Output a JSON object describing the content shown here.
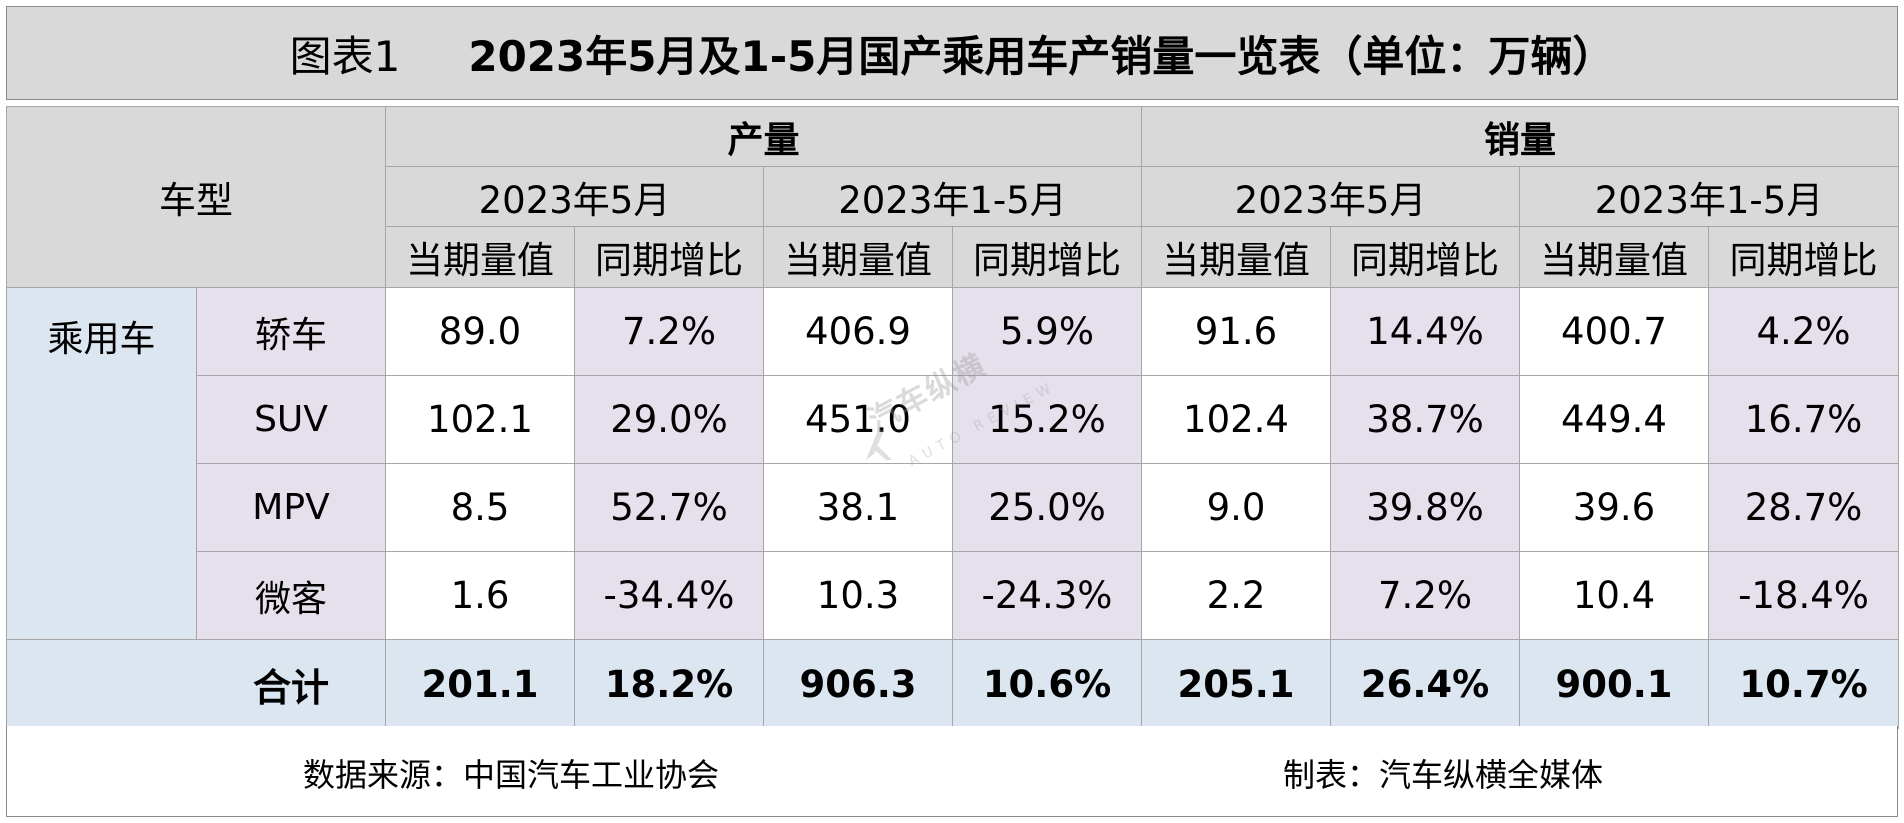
{
  "title": {
    "prefix": "图表1",
    "main": "2023年5月及1-5月国产乘用车产销量一览表（单位：万辆）"
  },
  "table": {
    "vehicle_type_header": "车型",
    "groups": [
      "产量",
      "销量"
    ],
    "periods": [
      "2023年5月",
      "2023年1-5月",
      "2023年5月",
      "2023年1-5月"
    ],
    "metrics": [
      "当期量值",
      "同期增比",
      "当期量值",
      "同期增比",
      "当期量值",
      "同期增比",
      "当期量值",
      "同期增比"
    ],
    "category_label": "乘用车",
    "rows": [
      {
        "type": "轿车",
        "values": [
          "89.0",
          "7.2%",
          "406.9",
          "5.9%",
          "91.6",
          "14.4%",
          "400.7",
          "4.2%"
        ]
      },
      {
        "type": "SUV",
        "values": [
          "102.1",
          "29.0%",
          "451.0",
          "15.2%",
          "102.4",
          "38.7%",
          "449.4",
          "16.7%"
        ]
      },
      {
        "type": "MPV",
        "values": [
          "8.5",
          "52.7%",
          "38.1",
          "25.0%",
          "9.0",
          "39.8%",
          "39.6",
          "28.7%"
        ]
      },
      {
        "type": "微客",
        "values": [
          "1.6",
          "-34.4%",
          "10.3",
          "-24.3%",
          "2.2",
          "7.2%",
          "10.4",
          "-18.4%"
        ]
      }
    ],
    "total": {
      "label": "合计",
      "values": [
        "201.1",
        "18.2%",
        "906.3",
        "10.6%",
        "205.1",
        "26.4%",
        "900.1",
        "10.7%"
      ]
    }
  },
  "footer": {
    "source": "数据来源：中国汽车工业协会",
    "maker": "制表：汽车纵横全媒体"
  },
  "watermark": {
    "text": "汽车纵横",
    "sub": "AUTO REVIEW"
  },
  "colors": {
    "header_gray": "#d9d9d9",
    "lavender": "#e6e0ec",
    "light_blue": "#dce6f1",
    "border": "#a6a6a6"
  },
  "chart_data": {
    "type": "table",
    "title": "2023年5月及1-5月国产乘用车产销量一览表（单位：万辆）",
    "columns": [
      "车型",
      "产量 2023年5月 当期量值",
      "产量 2023年5月 同期增比",
      "产量 2023年1-5月 当期量值",
      "产量 2023年1-5月 同期增比",
      "销量 2023年5月 当期量值",
      "销量 2023年5月 同期增比",
      "销量 2023年1-5月 当期量值",
      "销量 2023年1-5月 同期增比"
    ],
    "rows": [
      [
        "轿车",
        89.0,
        7.2,
        406.9,
        5.9,
        91.6,
        14.4,
        400.7,
        4.2
      ],
      [
        "SUV",
        102.1,
        29.0,
        451.0,
        15.2,
        102.4,
        38.7,
        449.4,
        16.7
      ],
      [
        "MPV",
        8.5,
        52.7,
        38.1,
        25.0,
        9.0,
        39.8,
        39.6,
        28.7
      ],
      [
        "微客",
        1.6,
        -34.4,
        10.3,
        -24.3,
        2.2,
        7.2,
        10.4,
        -18.4
      ],
      [
        "合计",
        201.1,
        18.2,
        906.3,
        10.6,
        205.1,
        26.4,
        900.1,
        10.7
      ]
    ]
  }
}
